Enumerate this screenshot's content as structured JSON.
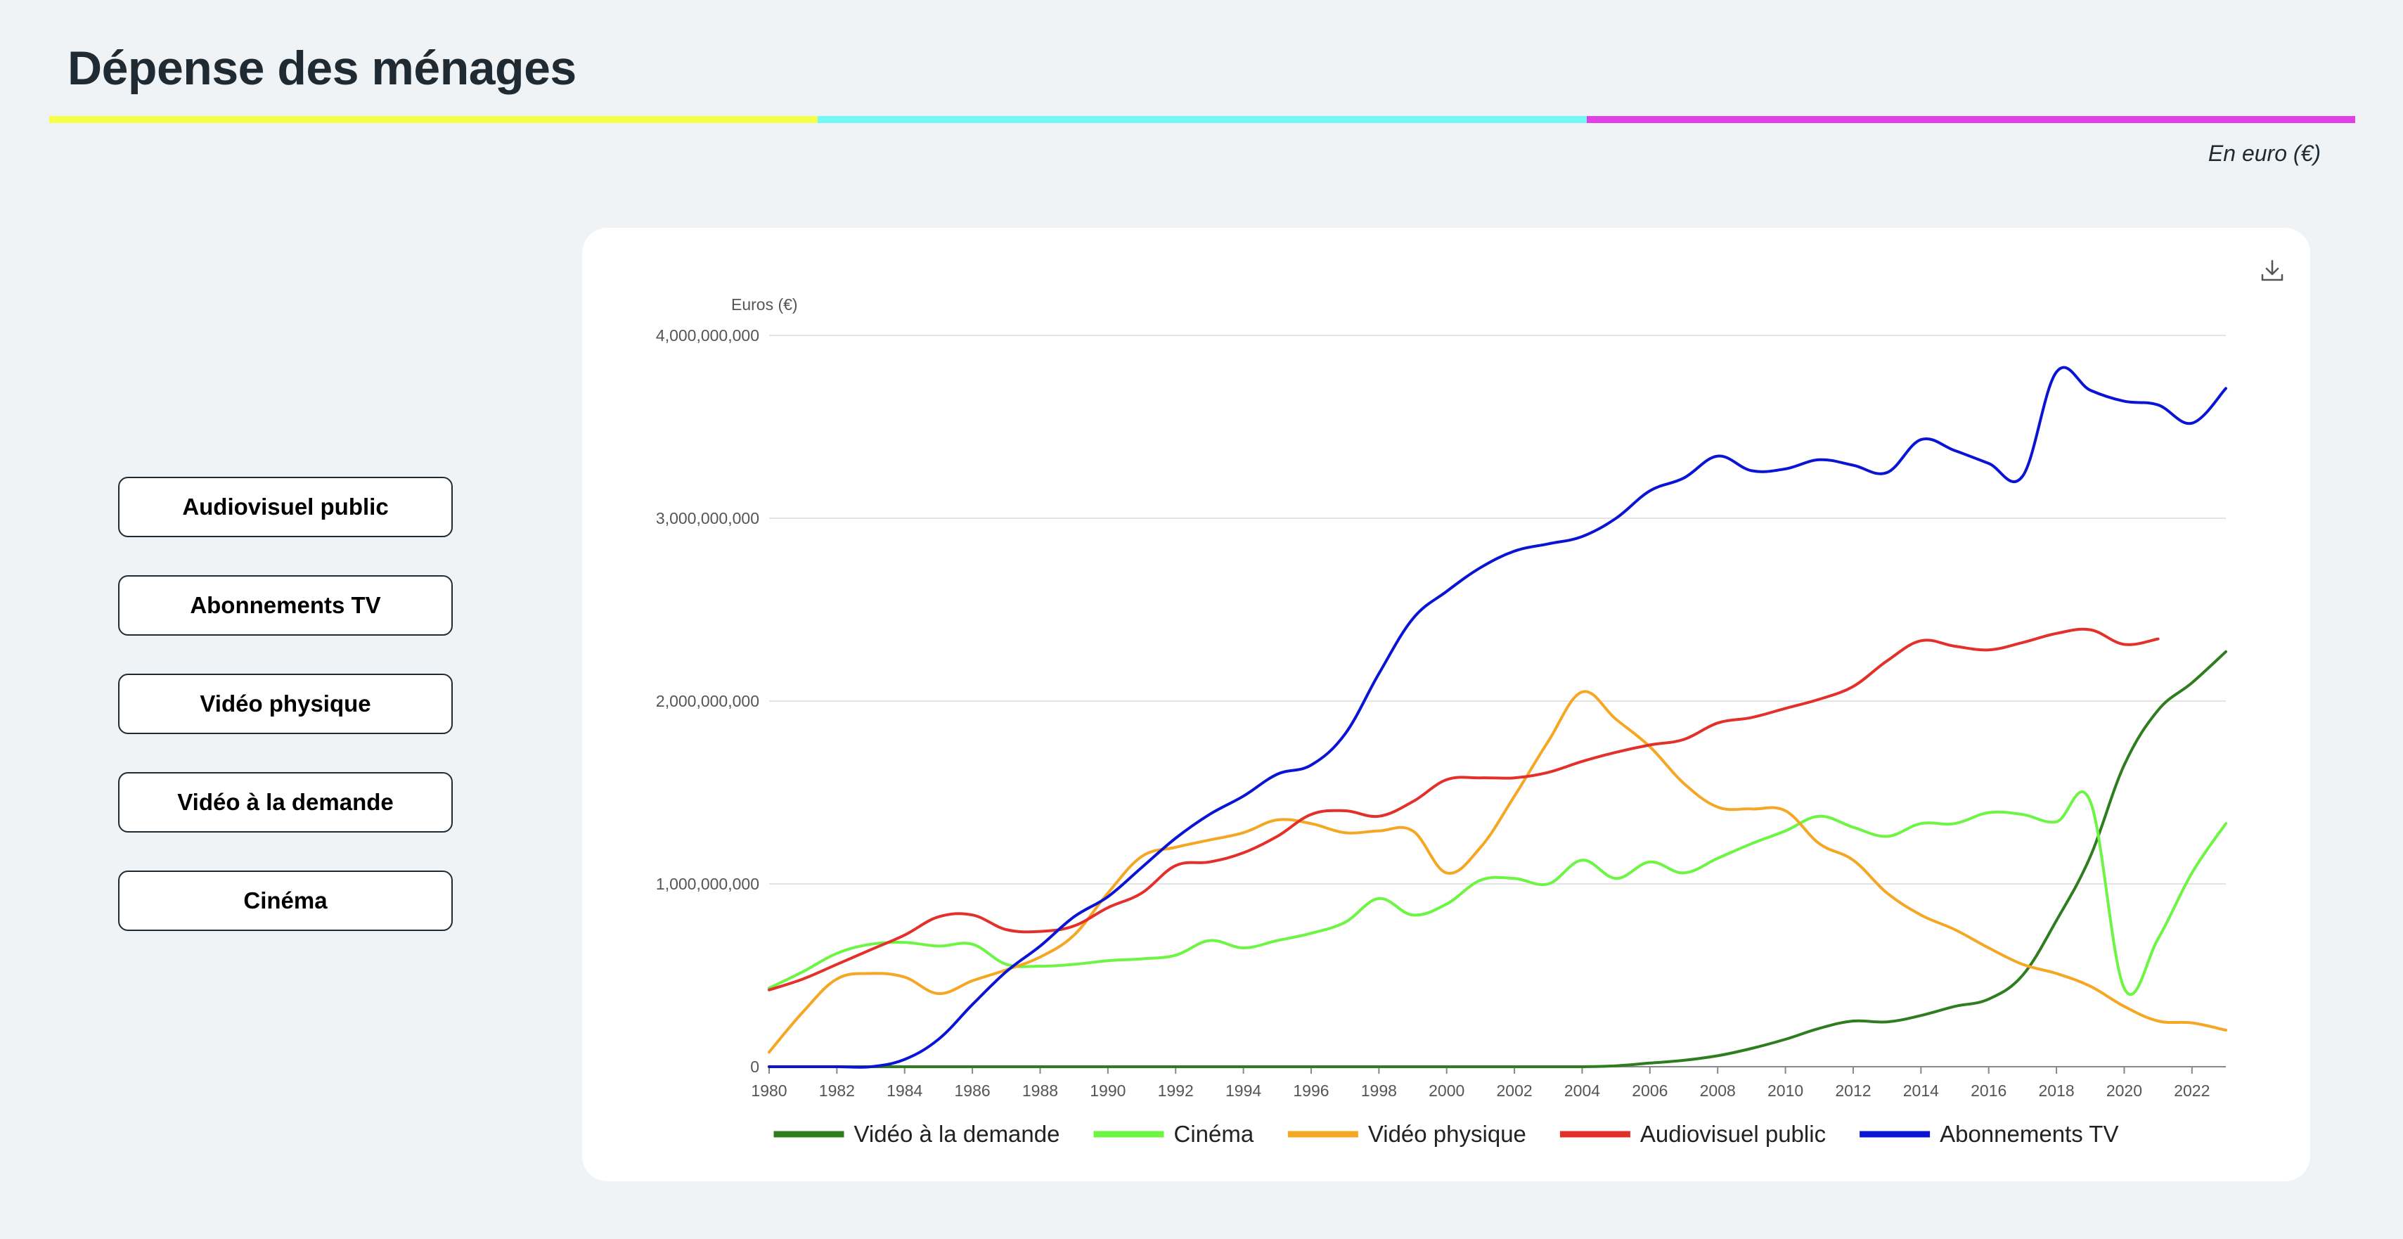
{
  "header": {
    "title": "Dépense des ménages",
    "unit_note": "En euro (€)",
    "bar_colors": [
      "#f5ff4a",
      "#73f7f7",
      "#e040e6"
    ]
  },
  "filters": [
    {
      "label": "Audiovisuel public"
    },
    {
      "label": "Abonnements TV"
    },
    {
      "label": "Vidéo physique"
    },
    {
      "label": "Vidéo à la demande"
    },
    {
      "label": "Cinéma"
    }
  ],
  "toolbar": {
    "download_icon": "download-icon"
  },
  "chart_data": {
    "type": "line",
    "title": "",
    "xlabel": "",
    "ylabel": "Euros (€)",
    "xlim": [
      1980,
      2023
    ],
    "ylim": [
      0,
      4000000000
    ],
    "x_ticks": [
      "1980",
      "1982",
      "1984",
      "1986",
      "1988",
      "1990",
      "1992",
      "1994",
      "1996",
      "1998",
      "2000",
      "2002",
      "2004",
      "2006",
      "2008",
      "2010",
      "2012",
      "2014",
      "2016",
      "2018",
      "2020",
      "2022"
    ],
    "y_ticks": [
      "0",
      "1,000,000,000",
      "2,000,000,000",
      "3,000,000,000",
      "4,000,000,000"
    ],
    "y_tick_values": [
      0,
      1000000000,
      2000000000,
      3000000000,
      4000000000
    ],
    "grid": true,
    "legend_position": "bottom",
    "series": [
      {
        "name": "Vidéo à la demande",
        "color": "#2e7d1f",
        "x": [
          1980,
          1982,
          1984,
          1986,
          1988,
          1990,
          1992,
          1994,
          1996,
          1998,
          2000,
          2002,
          2004,
          2005,
          2006,
          2007,
          2008,
          2009,
          2010,
          2011,
          2012,
          2013,
          2014,
          2015,
          2016,
          2017,
          2018,
          2019,
          2020,
          2021,
          2022,
          2023
        ],
        "values": [
          0,
          0,
          0,
          0,
          0,
          0,
          0,
          0,
          0,
          0,
          0,
          0,
          0,
          5000000,
          20000000,
          35000000,
          60000000,
          100000000,
          150000000,
          210000000,
          250000000,
          245000000,
          280000000,
          330000000,
          370000000,
          500000000,
          800000000,
          1150000000,
          1650000000,
          1950000000,
          2100000000,
          2270000000
        ]
      },
      {
        "name": "Cinéma",
        "color": "#6cf542",
        "x": [
          1980,
          1981,
          1982,
          1983,
          1984,
          1985,
          1986,
          1987,
          1988,
          1989,
          1990,
          1991,
          1992,
          1993,
          1994,
          1995,
          1996,
          1997,
          1998,
          1999,
          2000,
          2001,
          2002,
          2003,
          2004,
          2005,
          2006,
          2007,
          2008,
          2009,
          2010,
          2011,
          2012,
          2013,
          2014,
          2015,
          2016,
          2017,
          2018,
          2019,
          2020,
          2021,
          2022,
          2023
        ],
        "values": [
          430000000,
          520000000,
          620000000,
          670000000,
          680000000,
          660000000,
          670000000,
          560000000,
          550000000,
          560000000,
          580000000,
          590000000,
          610000000,
          690000000,
          650000000,
          690000000,
          730000000,
          790000000,
          920000000,
          830000000,
          890000000,
          1020000000,
          1030000000,
          1000000000,
          1130000000,
          1030000000,
          1120000000,
          1060000000,
          1140000000,
          1220000000,
          1290000000,
          1370000000,
          1310000000,
          1260000000,
          1330000000,
          1330000000,
          1390000000,
          1380000000,
          1340000000,
          1450000000,
          430000000,
          700000000,
          1060000000,
          1330000000
        ]
      },
      {
        "name": "Vidéo physique",
        "color": "#f5a623",
        "x": [
          1980,
          1981,
          1982,
          1983,
          1984,
          1985,
          1986,
          1987,
          1988,
          1989,
          1990,
          1991,
          1992,
          1993,
          1994,
          1995,
          1996,
          1997,
          1998,
          1999,
          2000,
          2001,
          2002,
          2003,
          2004,
          2005,
          2006,
          2007,
          2008,
          2009,
          2010,
          2011,
          2012,
          2013,
          2014,
          2015,
          2016,
          2017,
          2018,
          2019,
          2020,
          2021,
          2022,
          2023
        ],
        "values": [
          80000000,
          300000000,
          480000000,
          510000000,
          490000000,
          400000000,
          470000000,
          530000000,
          600000000,
          720000000,
          950000000,
          1150000000,
          1200000000,
          1240000000,
          1280000000,
          1350000000,
          1330000000,
          1280000000,
          1290000000,
          1290000000,
          1060000000,
          1200000000,
          1480000000,
          1780000000,
          2050000000,
          1900000000,
          1750000000,
          1550000000,
          1420000000,
          1410000000,
          1400000000,
          1220000000,
          1130000000,
          950000000,
          830000000,
          750000000,
          650000000,
          560000000,
          510000000,
          440000000,
          330000000,
          250000000,
          240000000,
          200000000
        ]
      },
      {
        "name": "Audiovisuel public",
        "color": "#e3302a",
        "x": [
          1980,
          1981,
          1982,
          1983,
          1984,
          1985,
          1986,
          1987,
          1988,
          1989,
          1990,
          1991,
          1992,
          1993,
          1994,
          1995,
          1996,
          1997,
          1998,
          1999,
          2000,
          2001,
          2002,
          2003,
          2004,
          2005,
          2006,
          2007,
          2008,
          2009,
          2010,
          2011,
          2012,
          2013,
          2014,
          2015,
          2016,
          2017,
          2018,
          2019,
          2020,
          2021
        ],
        "values": [
          420000000,
          480000000,
          560000000,
          640000000,
          720000000,
          820000000,
          830000000,
          750000000,
          740000000,
          770000000,
          870000000,
          950000000,
          1100000000,
          1120000000,
          1170000000,
          1260000000,
          1380000000,
          1400000000,
          1370000000,
          1450000000,
          1570000000,
          1580000000,
          1580000000,
          1610000000,
          1670000000,
          1720000000,
          1760000000,
          1790000000,
          1880000000,
          1910000000,
          1960000000,
          2010000000,
          2080000000,
          2220000000,
          2330000000,
          2300000000,
          2280000000,
          2320000000,
          2370000000,
          2390000000,
          2310000000,
          2340000000
        ]
      },
      {
        "name": "Abonnements TV",
        "color": "#0a14d4",
        "x": [
          1980,
          1981,
          1982,
          1983,
          1984,
          1985,
          1986,
          1987,
          1988,
          1989,
          1990,
          1991,
          1992,
          1993,
          1994,
          1995,
          1996,
          1997,
          1998,
          1999,
          2000,
          2001,
          2002,
          2003,
          2004,
          2005,
          2006,
          2007,
          2008,
          2009,
          2010,
          2011,
          2012,
          2013,
          2014,
          2015,
          2016,
          2017,
          2018,
          2019,
          2020,
          2021,
          2022,
          2023
        ],
        "values": [
          0,
          0,
          0,
          0,
          40000000,
          150000000,
          340000000,
          520000000,
          660000000,
          820000000,
          930000000,
          1090000000,
          1250000000,
          1380000000,
          1480000000,
          1600000000,
          1650000000,
          1820000000,
          2150000000,
          2450000000,
          2600000000,
          2730000000,
          2820000000,
          2860000000,
          2900000000,
          3000000000,
          3150000000,
          3220000000,
          3340000000,
          3260000000,
          3270000000,
          3320000000,
          3290000000,
          3250000000,
          3430000000,
          3370000000,
          3300000000,
          3230000000,
          3800000000,
          3700000000,
          3640000000,
          3620000000,
          3520000000,
          3710000000
        ]
      }
    ]
  }
}
